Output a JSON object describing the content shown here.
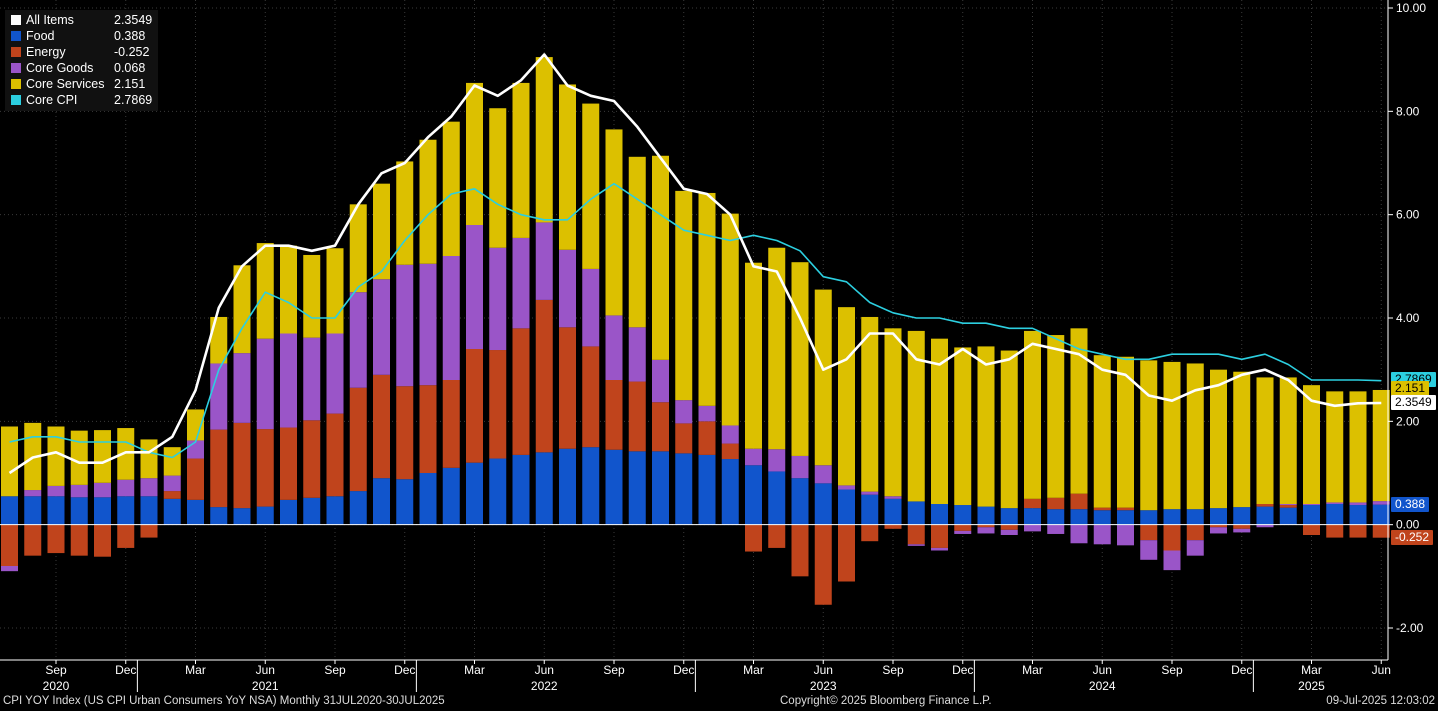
{
  "legend": [
    {
      "name": "All Items",
      "value": "2.3549",
      "color": "#ffffff"
    },
    {
      "name": "Food",
      "value": "0.388",
      "color": "#1155cc"
    },
    {
      "name": "Energy",
      "value": "-0.252",
      "color": "#c0441c"
    },
    {
      "name": "Core Goods",
      "value": "0.068",
      "color": "#9a55c8"
    },
    {
      "name": "Core Services",
      "value": "2.151",
      "color": "#dcc000"
    },
    {
      "name": "Core CPI",
      "value": "2.7869",
      "color": "#2ccfe0"
    }
  ],
  "footer": {
    "left": "CPI YOY Index (US CPI Urban Consumers YoY NSA)  Monthly 31JUL2020-30JUL2025",
    "center": "Copyright© 2025 Bloomberg Finance L.P.",
    "right": "09-Jul-2025 12:03:02"
  },
  "tags": {
    "core_cpi": "2.7869",
    "core_services": "2.151",
    "all_items": "2.3549",
    "food": "0.388",
    "energy": "-0.252"
  },
  "chart_data": {
    "type": "bar",
    "stacked": true,
    "ylim": [
      -2.5,
      10
    ],
    "yticks": [
      "10.00",
      "8.00",
      "6.00",
      "4.00",
      "2.00",
      "0.00",
      "-2.00"
    ],
    "ytick_values": [
      10,
      8,
      6,
      4,
      2,
      0,
      -2
    ],
    "grid": true,
    "legend_position": "top-left",
    "categories": [
      "2020-07",
      "2020-08",
      "2020-09",
      "2020-10",
      "2020-11",
      "2020-12",
      "2021-01",
      "2021-02",
      "2021-03",
      "2021-04",
      "2021-05",
      "2021-06",
      "2021-07",
      "2021-08",
      "2021-09",
      "2021-10",
      "2021-11",
      "2021-12",
      "2022-01",
      "2022-02",
      "2022-03",
      "2022-04",
      "2022-05",
      "2022-06",
      "2022-07",
      "2022-08",
      "2022-09",
      "2022-10",
      "2022-11",
      "2022-12",
      "2023-01",
      "2023-02",
      "2023-03",
      "2023-04",
      "2023-05",
      "2023-06",
      "2023-07",
      "2023-08",
      "2023-09",
      "2023-10",
      "2023-11",
      "2023-12",
      "2024-01",
      "2024-02",
      "2024-03",
      "2024-04",
      "2024-05",
      "2024-06",
      "2024-07",
      "2024-08",
      "2024-09",
      "2024-10",
      "2024-11",
      "2024-12",
      "2025-01",
      "2025-02",
      "2025-03",
      "2025-04",
      "2025-05",
      "2025-06"
    ],
    "x_month_labels": [
      {
        "index": 2,
        "label": "Sep"
      },
      {
        "index": 5,
        "label": "Dec"
      },
      {
        "index": 8,
        "label": "Mar"
      },
      {
        "index": 11,
        "label": "Jun"
      },
      {
        "index": 14,
        "label": "Sep"
      },
      {
        "index": 17,
        "label": "Dec"
      },
      {
        "index": 20,
        "label": "Mar"
      },
      {
        "index": 23,
        "label": "Jun"
      },
      {
        "index": 26,
        "label": "Sep"
      },
      {
        "index": 29,
        "label": "Dec"
      },
      {
        "index": 32,
        "label": "Mar"
      },
      {
        "index": 35,
        "label": "Jun"
      },
      {
        "index": 38,
        "label": "Sep"
      },
      {
        "index": 41,
        "label": "Dec"
      },
      {
        "index": 44,
        "label": "Mar"
      },
      {
        "index": 47,
        "label": "Jun"
      },
      {
        "index": 50,
        "label": "Sep"
      },
      {
        "index": 53,
        "label": "Dec"
      },
      {
        "index": 56,
        "label": "Mar"
      },
      {
        "index": 59,
        "label": "Jun"
      }
    ],
    "x_year_labels": [
      {
        "index": 2,
        "label": "2020"
      },
      {
        "index": 11,
        "label": "2021"
      },
      {
        "index": 23,
        "label": "2022"
      },
      {
        "index": 35,
        "label": "2023"
      },
      {
        "index": 47,
        "label": "2024"
      },
      {
        "index": 56,
        "label": "2025"
      }
    ],
    "year_separators": [
      5.5,
      17.5,
      29.5,
      41.5,
      53.5
    ],
    "bar_series": [
      {
        "name": "Food",
        "color": "#1155cc",
        "values": [
          0.55,
          0.55,
          0.55,
          0.53,
          0.53,
          0.55,
          0.55,
          0.5,
          0.48,
          0.34,
          0.32,
          0.35,
          0.48,
          0.52,
          0.55,
          0.65,
          0.9,
          0.88,
          1.0,
          1.1,
          1.2,
          1.28,
          1.35,
          1.4,
          1.47,
          1.5,
          1.45,
          1.42,
          1.42,
          1.38,
          1.35,
          1.27,
          1.15,
          1.03,
          0.9,
          0.8,
          0.68,
          0.58,
          0.5,
          0.45,
          0.4,
          0.38,
          0.35,
          0.32,
          0.32,
          0.3,
          0.3,
          0.28,
          0.28,
          0.28,
          0.3,
          0.3,
          0.32,
          0.34,
          0.35,
          0.33,
          0.38,
          0.4,
          0.38,
          0.388
        ]
      },
      {
        "name": "Energy",
        "color": "#c0441c",
        "values": [
          -0.8,
          -0.6,
          -0.55,
          -0.6,
          -0.62,
          -0.45,
          -0.25,
          0.15,
          0.8,
          1.5,
          1.65,
          1.5,
          1.4,
          1.5,
          1.6,
          2.0,
          2.0,
          1.8,
          1.7,
          1.7,
          2.2,
          2.1,
          2.45,
          2.95,
          2.35,
          1.95,
          1.35,
          1.35,
          0.95,
          0.58,
          0.65,
          0.3,
          -0.52,
          -0.45,
          -1.0,
          -1.55,
          -1.1,
          -0.32,
          -0.08,
          -0.38,
          -0.45,
          -0.12,
          -0.05,
          -0.1,
          0.18,
          0.22,
          0.3,
          0.05,
          0.05,
          -0.3,
          -0.5,
          -0.3,
          -0.05,
          -0.08,
          0.05,
          0.05,
          -0.2,
          -0.25,
          -0.25,
          -0.252
        ]
      },
      {
        "name": "Core Goods",
        "color": "#9a55c8",
        "values": [
          -0.1,
          0.12,
          0.2,
          0.24,
          0.28,
          0.32,
          0.35,
          0.3,
          0.35,
          1.28,
          1.35,
          1.75,
          1.82,
          1.6,
          1.55,
          1.85,
          1.85,
          2.35,
          2.35,
          2.4,
          2.4,
          1.98,
          1.75,
          1.5,
          1.5,
          1.5,
          1.25,
          1.05,
          0.82,
          0.45,
          0.3,
          0.35,
          0.32,
          0.43,
          0.43,
          0.35,
          0.08,
          0.06,
          0.05,
          -0.03,
          -0.05,
          -0.06,
          -0.12,
          -0.1,
          -0.13,
          -0.18,
          -0.36,
          -0.38,
          -0.4,
          -0.38,
          -0.38,
          -0.3,
          -0.12,
          -0.07,
          -0.05,
          0.02,
          0.02,
          0.03,
          0.05,
          0.068
        ]
      },
      {
        "name": "Core Services",
        "color": "#dcc000",
        "values": [
          1.35,
          1.3,
          1.15,
          1.05,
          1.02,
          1.0,
          0.75,
          0.55,
          0.6,
          0.9,
          1.7,
          1.85,
          1.7,
          1.6,
          1.65,
          1.7,
          1.85,
          2.0,
          2.4,
          2.6,
          2.75,
          2.7,
          3.0,
          3.2,
          3.2,
          3.2,
          3.6,
          3.3,
          3.95,
          4.05,
          4.12,
          4.1,
          3.6,
          3.9,
          3.75,
          3.4,
          3.45,
          3.38,
          3.25,
          3.3,
          3.2,
          3.05,
          3.1,
          3.05,
          3.25,
          3.15,
          3.2,
          2.95,
          2.92,
          2.9,
          2.85,
          2.82,
          2.68,
          2.62,
          2.45,
          2.45,
          2.3,
          2.15,
          2.15,
          2.151
        ]
      }
    ],
    "line_series": [
      {
        "name": "All Items",
        "color": "#ffffff",
        "values": [
          1.0,
          1.3,
          1.4,
          1.2,
          1.2,
          1.4,
          1.4,
          1.7,
          2.6,
          4.2,
          5.0,
          5.4,
          5.4,
          5.3,
          5.4,
          6.2,
          6.8,
          7.0,
          7.5,
          7.9,
          8.5,
          8.3,
          8.6,
          9.1,
          8.5,
          8.3,
          8.2,
          7.7,
          7.1,
          6.5,
          6.4,
          6.0,
          5.0,
          4.9,
          4.0,
          3.0,
          3.2,
          3.7,
          3.7,
          3.2,
          3.1,
          3.4,
          3.1,
          3.2,
          3.5,
          3.4,
          3.3,
          3.0,
          2.9,
          2.5,
          2.4,
          2.6,
          2.7,
          2.9,
          3.0,
          2.8,
          2.4,
          2.3,
          2.35,
          2.3549
        ]
      },
      {
        "name": "Core CPI",
        "color": "#2ccfe0",
        "values": [
          1.6,
          1.7,
          1.7,
          1.6,
          1.6,
          1.6,
          1.4,
          1.3,
          1.6,
          3.0,
          3.8,
          4.5,
          4.3,
          4.0,
          4.0,
          4.6,
          4.9,
          5.5,
          6.0,
          6.4,
          6.5,
          6.2,
          6.0,
          5.9,
          5.9,
          6.3,
          6.6,
          6.3,
          6.0,
          5.7,
          5.6,
          5.5,
          5.6,
          5.5,
          5.3,
          4.8,
          4.7,
          4.3,
          4.1,
          4.0,
          4.0,
          3.9,
          3.9,
          3.8,
          3.8,
          3.6,
          3.4,
          3.3,
          3.2,
          3.2,
          3.3,
          3.3,
          3.3,
          3.2,
          3.3,
          3.1,
          2.8,
          2.8,
          2.8,
          2.7869
        ]
      }
    ]
  }
}
